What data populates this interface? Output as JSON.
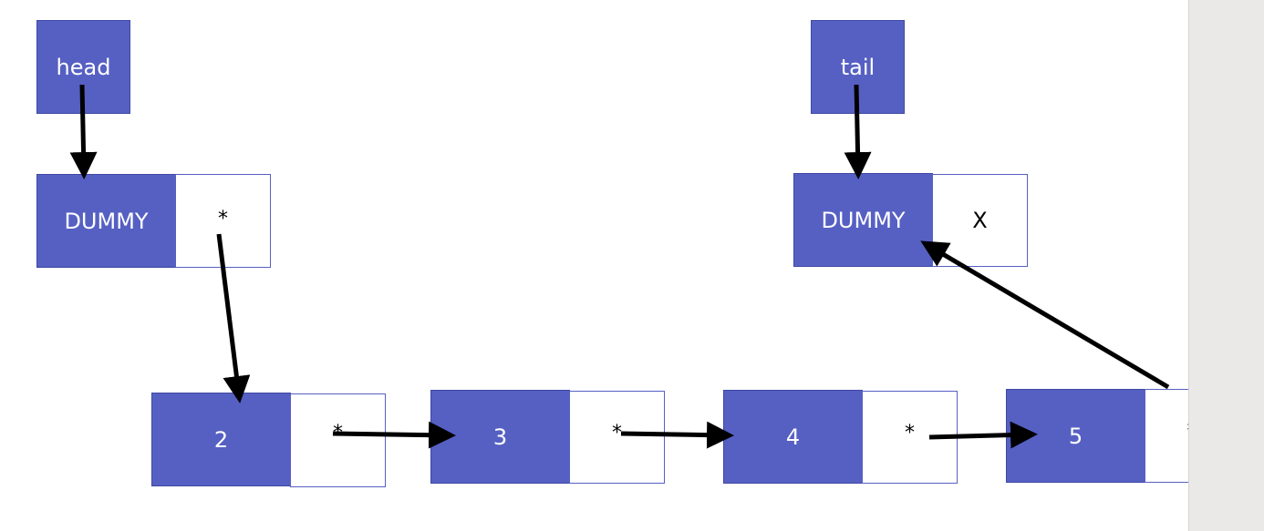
{
  "pointers": {
    "head": "head",
    "tail": "tail"
  },
  "head_dummy": {
    "label": "DUMMY",
    "next": "*"
  },
  "tail_dummy": {
    "label": "DUMMY",
    "next": "X"
  },
  "nodes": [
    {
      "value": "2",
      "next": "*"
    },
    {
      "value": "3",
      "next": "*"
    },
    {
      "value": "4",
      "next": "*"
    },
    {
      "value": "5",
      "next": "*"
    }
  ],
  "colors": {
    "node_fill": "#5660c3",
    "node_text": "#ffffff",
    "arrow": "#000000",
    "side_panel": "#ebe9e8"
  }
}
